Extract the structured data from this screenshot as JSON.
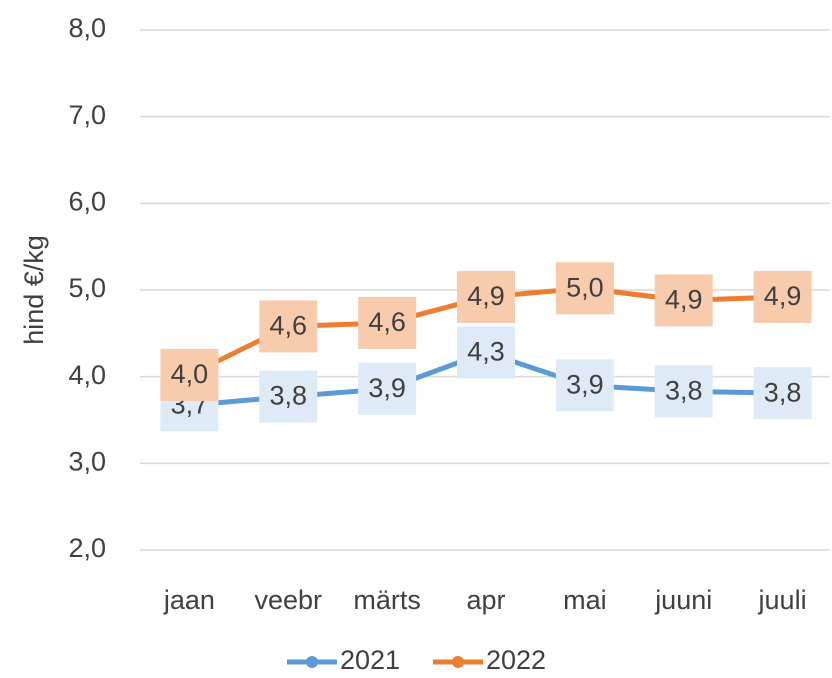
{
  "chart_data": {
    "type": "line",
    "y_label": "hind €/kg",
    "categories": [
      "jaan",
      "veebr",
      "märts",
      "apr",
      "mai",
      "juuni",
      "juuli"
    ],
    "series": [
      {
        "name": "2021",
        "color": "#5b9bd5",
        "label_fill": "#deebf7",
        "values": [
          3.67,
          3.77,
          3.86,
          4.28,
          3.9,
          3.83,
          3.81
        ],
        "value_labels": [
          "3,7",
          "3,8",
          "3,9",
          "4,3",
          "3,9",
          "3,8",
          "3,8"
        ]
      },
      {
        "name": "2022",
        "color": "#ed7d31",
        "label_fill": "#f8cbad",
        "values": [
          4.02,
          4.58,
          4.62,
          4.92,
          5.02,
          4.88,
          4.92
        ],
        "value_labels": [
          "4,0",
          "4,6",
          "4,6",
          "4,9",
          "5,0",
          "4,9",
          "4,9"
        ]
      }
    ],
    "ylim": [
      2,
      8
    ],
    "yticks": [
      {
        "value": 2,
        "label": "2,0"
      },
      {
        "value": 3,
        "label": "3,0"
      },
      {
        "value": 4,
        "label": "4,0"
      },
      {
        "value": 5,
        "label": "5,0"
      },
      {
        "value": 6,
        "label": "6,0"
      },
      {
        "value": 7,
        "label": "7,0"
      },
      {
        "value": 8,
        "label": "8,0"
      }
    ],
    "grid": true,
    "legend": "bottom"
  }
}
